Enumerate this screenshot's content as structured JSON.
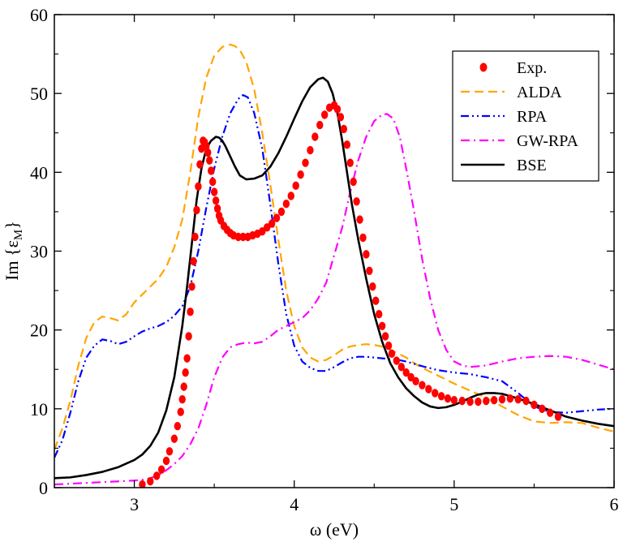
{
  "chart_data": {
    "type": "line",
    "title": "",
    "xlabel": "ω (eV)",
    "ylabel": {
      "base": "Im {ε",
      "sub": "M",
      "close": "}"
    },
    "xlim": [
      2.5,
      6.0
    ],
    "ylim": [
      0,
      60
    ],
    "xticks": [
      3,
      4,
      5,
      6
    ],
    "yticks": [
      0,
      10,
      20,
      30,
      40,
      50,
      60
    ],
    "grid": false,
    "legend_position": "top-right",
    "series": [
      {
        "name": "Exp.",
        "style": "markers",
        "color": "#ff0000",
        "x": [
          3.05,
          3.1,
          3.14,
          3.17,
          3.2,
          3.22,
          3.25,
          3.27,
          3.29,
          3.3,
          3.31,
          3.32,
          3.33,
          3.34,
          3.35,
          3.36,
          3.37,
          3.38,
          3.39,
          3.4,
          3.41,
          3.42,
          3.43,
          3.44,
          3.45,
          3.46,
          3.47,
          3.48,
          3.49,
          3.5,
          3.51,
          3.52,
          3.53,
          3.54,
          3.56,
          3.58,
          3.6,
          3.62,
          3.65,
          3.68,
          3.71,
          3.74,
          3.77,
          3.8,
          3.83,
          3.86,
          3.89,
          3.92,
          3.95,
          3.98,
          4.01,
          4.04,
          4.07,
          4.1,
          4.13,
          4.16,
          4.19,
          4.22,
          4.25,
          4.27,
          4.29,
          4.31,
          4.33,
          4.35,
          4.37,
          4.39,
          4.41,
          4.43,
          4.45,
          4.47,
          4.49,
          4.51,
          4.53,
          4.55,
          4.57,
          4.59,
          4.61,
          4.64,
          4.67,
          4.7,
          4.73,
          4.76,
          4.8,
          4.84,
          4.88,
          4.92,
          4.96,
          5.0,
          5.05,
          5.1,
          5.15,
          5.2,
          5.25,
          5.3,
          5.35,
          5.4,
          5.45,
          5.5,
          5.55,
          5.6,
          5.65
        ],
        "y": [
          0.4,
          0.8,
          1.5,
          2.3,
          3.4,
          4.6,
          6.2,
          7.8,
          9.6,
          11.2,
          12.8,
          14.6,
          16.4,
          19.2,
          22.3,
          25.5,
          28.7,
          31.8,
          35.2,
          38.2,
          41.0,
          43.0,
          44.0,
          43.8,
          43.3,
          42.5,
          41.5,
          40.2,
          38.8,
          37.5,
          36.4,
          35.4,
          34.5,
          33.9,
          33.2,
          32.7,
          32.3,
          32.0,
          31.8,
          31.8,
          31.8,
          32.0,
          32.2,
          32.5,
          33.0,
          33.5,
          34.2,
          35.0,
          36.0,
          37.0,
          38.3,
          39.7,
          41.2,
          42.8,
          44.5,
          46.0,
          47.3,
          48.2,
          48.5,
          48.0,
          47.0,
          45.5,
          43.5,
          41.2,
          38.8,
          36.3,
          34.0,
          31.7,
          29.6,
          27.5,
          25.5,
          23.7,
          22.0,
          20.5,
          19.2,
          18.0,
          17.0,
          16.1,
          15.3,
          14.6,
          14.0,
          13.5,
          13.0,
          12.5,
          12.0,
          11.6,
          11.3,
          11.1,
          11.0,
          10.9,
          10.9,
          11.0,
          11.1,
          11.2,
          11.3,
          11.2,
          11.0,
          10.5,
          10.0,
          9.5,
          9.0
        ]
      },
      {
        "name": "ALDA",
        "style": "dash",
        "color": "#ffa500",
        "x": [
          2.5,
          2.55,
          2.6,
          2.65,
          2.7,
          2.75,
          2.8,
          2.85,
          2.9,
          2.95,
          3.0,
          3.05,
          3.1,
          3.15,
          3.2,
          3.25,
          3.3,
          3.35,
          3.4,
          3.45,
          3.5,
          3.55,
          3.6,
          3.63,
          3.66,
          3.7,
          3.75,
          3.8,
          3.85,
          3.9,
          3.95,
          4.0,
          4.05,
          4.1,
          4.15,
          4.2,
          4.25,
          4.3,
          4.35,
          4.4,
          4.45,
          4.5,
          4.55,
          4.6,
          4.65,
          4.7,
          4.75,
          4.8,
          4.9,
          5.0,
          5.1,
          5.2,
          5.3,
          5.4,
          5.5,
          5.6,
          5.7,
          5.8,
          5.9,
          6.0
        ],
        "y": [
          4.8,
          7.5,
          11.0,
          15.5,
          19.0,
          21.0,
          21.7,
          21.5,
          21.2,
          22.0,
          23.5,
          24.5,
          25.5,
          26.5,
          28.0,
          30.5,
          34.0,
          40.0,
          47.0,
          52.0,
          54.8,
          55.9,
          56.2,
          56.0,
          55.5,
          54.0,
          50.5,
          45.0,
          38.5,
          31.5,
          25.0,
          20.5,
          17.8,
          16.5,
          16.0,
          16.2,
          16.8,
          17.5,
          17.9,
          18.1,
          18.2,
          18.1,
          17.9,
          17.5,
          17.0,
          16.5,
          15.8,
          15.2,
          14.2,
          13.2,
          12.3,
          11.4,
          10.3,
          9.2,
          8.4,
          8.2,
          8.3,
          8.2,
          7.6,
          7.1
        ]
      },
      {
        "name": "RPA",
        "style": "dash-dot-dot",
        "color": "#0000ff",
        "x": [
          2.5,
          2.55,
          2.6,
          2.65,
          2.7,
          2.75,
          2.8,
          2.85,
          2.9,
          2.95,
          3.0,
          3.05,
          3.1,
          3.15,
          3.2,
          3.25,
          3.3,
          3.35,
          3.4,
          3.45,
          3.5,
          3.55,
          3.6,
          3.65,
          3.68,
          3.71,
          3.75,
          3.8,
          3.85,
          3.9,
          3.95,
          4.0,
          4.05,
          4.1,
          4.15,
          4.2,
          4.25,
          4.3,
          4.35,
          4.4,
          4.45,
          4.5,
          4.55,
          4.6,
          4.65,
          4.7,
          4.8,
          4.9,
          5.0,
          5.1,
          5.2,
          5.3,
          5.4,
          5.5,
          5.6,
          5.7,
          5.8,
          5.9,
          6.0
        ],
        "y": [
          3.8,
          6.0,
          9.5,
          13.5,
          16.5,
          18.0,
          18.8,
          18.6,
          18.2,
          18.5,
          19.2,
          19.8,
          20.2,
          20.5,
          21.0,
          21.8,
          23.0,
          25.5,
          30.0,
          35.5,
          40.5,
          44.5,
          47.5,
          49.3,
          49.8,
          49.5,
          47.5,
          43.0,
          36.0,
          28.5,
          22.0,
          18.0,
          16.0,
          15.2,
          14.8,
          14.8,
          15.3,
          15.9,
          16.4,
          16.6,
          16.6,
          16.5,
          16.4,
          16.3,
          16.2,
          16.0,
          15.4,
          14.9,
          14.6,
          14.4,
          14.0,
          13.5,
          12.0,
          10.3,
          9.6,
          9.5,
          9.7,
          9.9,
          10.0
        ]
      },
      {
        "name": "GW-RPA",
        "style": "dash-dot",
        "color": "#ff00ff",
        "x": [
          2.5,
          2.6,
          2.7,
          2.8,
          2.9,
          3.0,
          3.05,
          3.1,
          3.15,
          3.2,
          3.25,
          3.3,
          3.35,
          3.4,
          3.45,
          3.5,
          3.55,
          3.6,
          3.65,
          3.7,
          3.75,
          3.8,
          3.85,
          3.9,
          3.95,
          4.0,
          4.05,
          4.1,
          4.15,
          4.2,
          4.25,
          4.3,
          4.35,
          4.4,
          4.45,
          4.5,
          4.55,
          4.58,
          4.62,
          4.66,
          4.7,
          4.75,
          4.8,
          4.85,
          4.9,
          4.95,
          5.0,
          5.05,
          5.1,
          5.2,
          5.3,
          5.4,
          5.5,
          5.6,
          5.7,
          5.8,
          5.9,
          6.0
        ],
        "y": [
          0.4,
          0.5,
          0.6,
          0.7,
          0.8,
          0.9,
          1.0,
          1.2,
          1.6,
          2.2,
          3.0,
          4.0,
          5.5,
          7.5,
          10.5,
          14.0,
          16.5,
          17.8,
          18.2,
          18.4,
          18.3,
          18.5,
          19.2,
          20.0,
          20.5,
          21.0,
          21.5,
          22.5,
          24.0,
          26.0,
          29.5,
          33.0,
          37.5,
          41.5,
          44.5,
          46.5,
          47.3,
          47.4,
          46.8,
          44.5,
          40.5,
          35.0,
          29.0,
          24.0,
          20.0,
          17.5,
          16.0,
          15.5,
          15.3,
          15.5,
          16.0,
          16.4,
          16.6,
          16.7,
          16.6,
          16.2,
          15.6,
          15.0
        ]
      },
      {
        "name": "BSE",
        "style": "solid",
        "color": "#000000",
        "x": [
          2.5,
          2.6,
          2.7,
          2.8,
          2.9,
          3.0,
          3.05,
          3.1,
          3.15,
          3.2,
          3.25,
          3.3,
          3.33,
          3.36,
          3.39,
          3.42,
          3.45,
          3.48,
          3.51,
          3.53,
          3.55,
          3.57,
          3.6,
          3.63,
          3.66,
          3.7,
          3.75,
          3.8,
          3.85,
          3.9,
          3.95,
          4.0,
          4.05,
          4.1,
          4.15,
          4.18,
          4.21,
          4.24,
          4.27,
          4.3,
          4.33,
          4.36,
          4.4,
          4.45,
          4.5,
          4.55,
          4.6,
          4.65,
          4.7,
          4.75,
          4.8,
          4.85,
          4.9,
          4.95,
          5.0,
          5.05,
          5.1,
          5.15,
          5.2,
          5.25,
          5.3,
          5.35,
          5.4,
          5.5,
          5.6,
          5.7,
          5.8,
          5.9,
          6.0
        ],
        "y": [
          1.2,
          1.3,
          1.6,
          2.0,
          2.6,
          3.5,
          4.2,
          5.3,
          7.0,
          9.8,
          14.0,
          20.5,
          25.5,
          31.0,
          36.5,
          40.5,
          43.0,
          44.0,
          44.5,
          44.4,
          44.0,
          43.3,
          42.0,
          40.7,
          39.6,
          39.1,
          39.2,
          39.6,
          40.7,
          42.4,
          44.5,
          46.8,
          49.0,
          50.8,
          51.8,
          52.0,
          51.5,
          50.0,
          47.5,
          44.0,
          40.0,
          36.0,
          31.5,
          26.5,
          22.0,
          18.5,
          15.8,
          14.0,
          12.6,
          11.6,
          10.8,
          10.3,
          10.1,
          10.2,
          10.5,
          10.9,
          11.4,
          11.8,
          12.0,
          12.0,
          11.9,
          11.6,
          11.3,
          10.6,
          9.8,
          9.0,
          8.5,
          8.1,
          7.8
        ]
      }
    ]
  }
}
